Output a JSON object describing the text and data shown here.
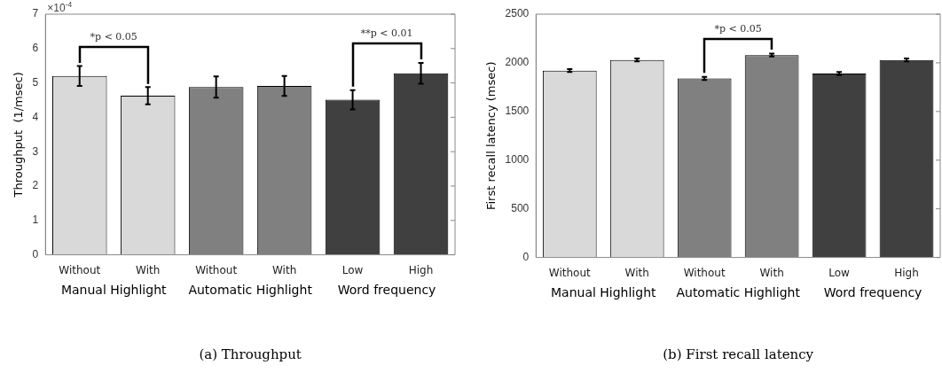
{
  "chart_data": [
    {
      "type": "bar",
      "title": "(a) Throughput",
      "ylabel": "Throughput  (1/msec)",
      "categories": [
        "Without",
        "With",
        "Without",
        "With",
        "Low",
        "High"
      ],
      "values": [
        5.2,
        4.63,
        4.88,
        4.91,
        4.51,
        5.28
      ],
      "errors": [
        0.29,
        0.25,
        0.31,
        0.29,
        0.28,
        0.3
      ],
      "colors": [
        "#d9d9d9",
        "#d9d9d9",
        "#808080",
        "#808080",
        "#404040",
        "#404040"
      ],
      "ylim": [
        0,
        7
      ],
      "yticks": [
        0,
        1,
        2,
        3,
        4,
        5,
        6,
        7
      ],
      "annotations": [
        "×10$^{-4}$",
        "Manual Highlight",
        "Automatic Highlight",
        "Word frequency",
        "*p < 0.05",
        "**p < 0.01"
      ]
    },
    {
      "type": "bar",
      "title": "(b) First recall latency",
      "ylabel": "First recall latency (msec)",
      "categories": [
        "Without",
        "With",
        "Without",
        "With",
        "Low",
        "High"
      ],
      "values": [
        1920,
        2030,
        1840,
        2080,
        1890,
        2030
      ],
      "errors": [
        15,
        15,
        15,
        15,
        15,
        15
      ],
      "colors": [
        "#d9d9d9",
        "#d9d9d9",
        "#808080",
        "#808080",
        "#404040",
        "#404040"
      ],
      "ylim": [
        0,
        2500
      ],
      "yticks": [
        0,
        500,
        1000,
        1500,
        2000,
        2500
      ],
      "annotations": [
        "Manual Highlight",
        "Automatic Highlight",
        "Word frequency",
        "*p < 0.05"
      ]
    }
  ]
}
